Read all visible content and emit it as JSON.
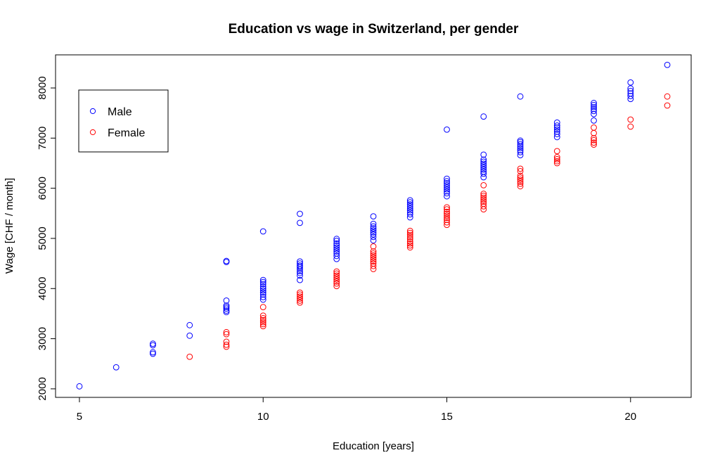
{
  "chart_data": {
    "type": "scatter",
    "title": "Education vs wage in Switzerland, per gender",
    "xlabel": "Education [years]",
    "ylabel": "Wage [CHF / month]",
    "xlim": [
      4.35,
      21.65
    ],
    "ylim": [
      1830,
      8660
    ],
    "x_ticks": [
      5,
      10,
      15,
      20
    ],
    "y_ticks": [
      2000,
      3000,
      4000,
      5000,
      6000,
      7000,
      8000
    ],
    "grid": false,
    "legend": "top-left",
    "series": [
      {
        "name": "Male",
        "color": "#0000ff",
        "marker": "circle-open",
        "points": [
          [
            5,
            2050
          ],
          [
            6,
            2430
          ],
          [
            7,
            2700
          ],
          [
            7,
            2730
          ],
          [
            7,
            2870
          ],
          [
            7,
            2900
          ],
          [
            8,
            3060
          ],
          [
            8,
            3270
          ],
          [
            9,
            3530
          ],
          [
            9,
            3560
          ],
          [
            9,
            3600
          ],
          [
            9,
            3630
          ],
          [
            9,
            3660
          ],
          [
            9,
            3760
          ],
          [
            9,
            4530
          ],
          [
            9,
            4550
          ],
          [
            10,
            3780
          ],
          [
            10,
            3830
          ],
          [
            10,
            3880
          ],
          [
            10,
            3920
          ],
          [
            10,
            3960
          ],
          [
            10,
            4000
          ],
          [
            10,
            4040
          ],
          [
            10,
            4090
          ],
          [
            10,
            4130
          ],
          [
            10,
            4170
          ],
          [
            10,
            5140
          ],
          [
            11,
            4170
          ],
          [
            11,
            4260
          ],
          [
            11,
            4310
          ],
          [
            11,
            4350
          ],
          [
            11,
            4390
          ],
          [
            11,
            4430
          ],
          [
            11,
            4460
          ],
          [
            11,
            4500
          ],
          [
            11,
            4540
          ],
          [
            11,
            5310
          ],
          [
            11,
            5490
          ],
          [
            12,
            4590
          ],
          [
            12,
            4650
          ],
          [
            12,
            4700
          ],
          [
            12,
            4740
          ],
          [
            12,
            4780
          ],
          [
            12,
            4820
          ],
          [
            12,
            4860
          ],
          [
            12,
            4900
          ],
          [
            12,
            4950
          ],
          [
            12,
            4990
          ],
          [
            13,
            4960
          ],
          [
            13,
            5030
          ],
          [
            13,
            5080
          ],
          [
            13,
            5120
          ],
          [
            13,
            5160
          ],
          [
            13,
            5200
          ],
          [
            13,
            5240
          ],
          [
            13,
            5290
          ],
          [
            13,
            5440
          ],
          [
            14,
            5420
          ],
          [
            14,
            5480
          ],
          [
            14,
            5520
          ],
          [
            14,
            5560
          ],
          [
            14,
            5600
          ],
          [
            14,
            5640
          ],
          [
            14,
            5680
          ],
          [
            14,
            5720
          ],
          [
            14,
            5760
          ],
          [
            15,
            5840
          ],
          [
            15,
            5900
          ],
          [
            15,
            5940
          ],
          [
            15,
            5980
          ],
          [
            15,
            6020
          ],
          [
            15,
            6060
          ],
          [
            15,
            6100
          ],
          [
            15,
            6140
          ],
          [
            15,
            6190
          ],
          [
            15,
            7170
          ],
          [
            16,
            6220
          ],
          [
            16,
            6290
          ],
          [
            16,
            6330
          ],
          [
            16,
            6370
          ],
          [
            16,
            6410
          ],
          [
            16,
            6450
          ],
          [
            16,
            6490
          ],
          [
            16,
            6530
          ],
          [
            16,
            6570
          ],
          [
            16,
            6670
          ],
          [
            16,
            7430
          ],
          [
            17,
            6660
          ],
          [
            17,
            6720
          ],
          [
            17,
            6760
          ],
          [
            17,
            6800
          ],
          [
            17,
            6840
          ],
          [
            17,
            6880
          ],
          [
            17,
            6920
          ],
          [
            17,
            6950
          ],
          [
            17,
            7830
          ],
          [
            18,
            7020
          ],
          [
            18,
            7080
          ],
          [
            18,
            7130
          ],
          [
            18,
            7170
          ],
          [
            18,
            7210
          ],
          [
            18,
            7250
          ],
          [
            18,
            7310
          ],
          [
            19,
            7350
          ],
          [
            19,
            7480
          ],
          [
            19,
            7540
          ],
          [
            19,
            7580
          ],
          [
            19,
            7620
          ],
          [
            19,
            7660
          ],
          [
            19,
            7700
          ],
          [
            20,
            7780
          ],
          [
            20,
            7840
          ],
          [
            20,
            7890
          ],
          [
            20,
            7940
          ],
          [
            20,
            7990
          ],
          [
            20,
            8110
          ],
          [
            21,
            8460
          ]
        ]
      },
      {
        "name": "Female",
        "color": "#ff0000",
        "marker": "circle-open",
        "points": [
          [
            8,
            2640
          ],
          [
            9,
            2840
          ],
          [
            9,
            2880
          ],
          [
            9,
            2940
          ],
          [
            9,
            3090
          ],
          [
            9,
            3130
          ],
          [
            10,
            3250
          ],
          [
            10,
            3290
          ],
          [
            10,
            3330
          ],
          [
            10,
            3370
          ],
          [
            10,
            3410
          ],
          [
            10,
            3460
          ],
          [
            10,
            3630
          ],
          [
            11,
            3720
          ],
          [
            11,
            3760
          ],
          [
            11,
            3800
          ],
          [
            11,
            3840
          ],
          [
            11,
            3880
          ],
          [
            11,
            3920
          ],
          [
            12,
            4050
          ],
          [
            12,
            4100
          ],
          [
            12,
            4140
          ],
          [
            12,
            4180
          ],
          [
            12,
            4220
          ],
          [
            12,
            4260
          ],
          [
            12,
            4300
          ],
          [
            12,
            4340
          ],
          [
            13,
            4390
          ],
          [
            13,
            4450
          ],
          [
            13,
            4500
          ],
          [
            13,
            4540
          ],
          [
            13,
            4580
          ],
          [
            13,
            4620
          ],
          [
            13,
            4660
          ],
          [
            13,
            4700
          ],
          [
            13,
            4740
          ],
          [
            13,
            4840
          ],
          [
            14,
            4820
          ],
          [
            14,
            4860
          ],
          [
            14,
            4900
          ],
          [
            14,
            4940
          ],
          [
            14,
            4990
          ],
          [
            14,
            5030
          ],
          [
            14,
            5070
          ],
          [
            14,
            5110
          ],
          [
            14,
            5150
          ],
          [
            15,
            5270
          ],
          [
            15,
            5320
          ],
          [
            15,
            5370
          ],
          [
            15,
            5410
          ],
          [
            15,
            5450
          ],
          [
            15,
            5490
          ],
          [
            15,
            5530
          ],
          [
            15,
            5580
          ],
          [
            15,
            5620
          ],
          [
            16,
            5580
          ],
          [
            16,
            5640
          ],
          [
            16,
            5690
          ],
          [
            16,
            5730
          ],
          [
            16,
            5770
          ],
          [
            16,
            5810
          ],
          [
            16,
            5850
          ],
          [
            16,
            5890
          ],
          [
            16,
            6060
          ],
          [
            17,
            6040
          ],
          [
            17,
            6090
          ],
          [
            17,
            6130
          ],
          [
            17,
            6170
          ],
          [
            17,
            6210
          ],
          [
            17,
            6250
          ],
          [
            17,
            6340
          ],
          [
            17,
            6390
          ],
          [
            18,
            6500
          ],
          [
            18,
            6540
          ],
          [
            18,
            6580
          ],
          [
            18,
            6620
          ],
          [
            18,
            6740
          ],
          [
            19,
            6870
          ],
          [
            19,
            6910
          ],
          [
            19,
            6960
          ],
          [
            19,
            7000
          ],
          [
            19,
            7100
          ],
          [
            19,
            7210
          ],
          [
            20,
            7230
          ],
          [
            20,
            7370
          ],
          [
            21,
            7650
          ],
          [
            21,
            7830
          ]
        ]
      }
    ]
  }
}
